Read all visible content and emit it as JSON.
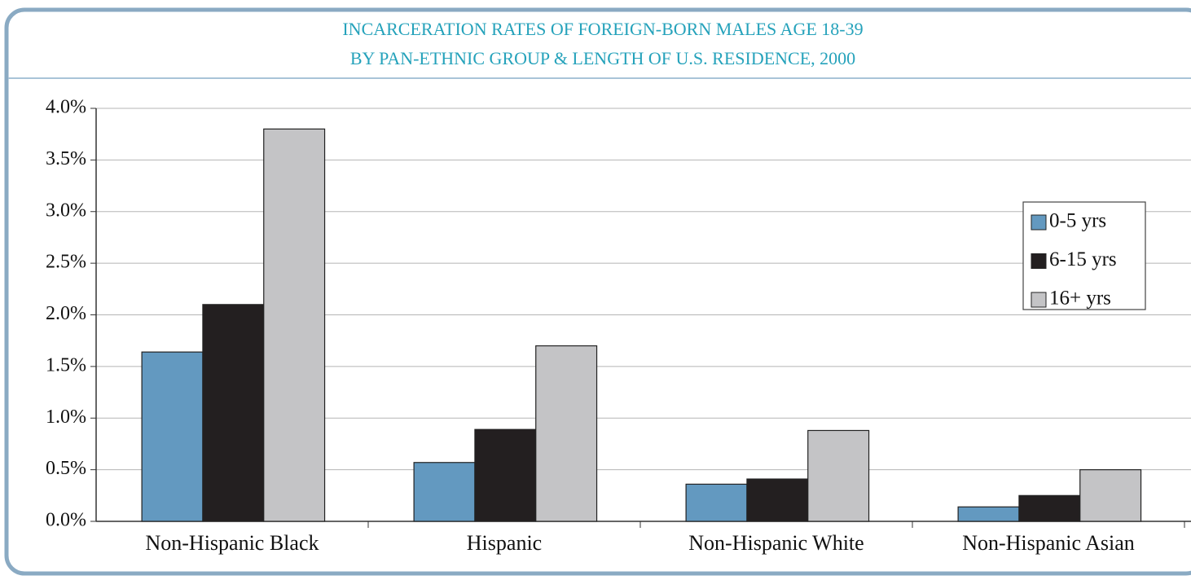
{
  "chart_data": {
    "type": "bar",
    "title": "INCARCERATION RATES OF FOREIGN-BORN MALES AGE 18-39",
    "subtitle": "BY PAN-ETHNIC GROUP & LENGTH OF U.S. RESIDENCE, 2000",
    "categories": [
      "Non-Hispanic Black",
      "Hispanic",
      "Non-Hispanic White",
      "Non-Hispanic Asian"
    ],
    "series": [
      {
        "name": "0-5 yrs",
        "color": "#6399c0",
        "values": [
          1.64,
          0.57,
          0.36,
          0.14
        ]
      },
      {
        "name": "6-15 yrs",
        "color": "#231f20",
        "values": [
          2.1,
          0.89,
          0.41,
          0.25
        ]
      },
      {
        "name": "16+ yrs",
        "color": "#c4c4c6",
        "values": [
          3.8,
          1.7,
          0.88,
          0.5
        ]
      }
    ],
    "ylim": [
      0,
      4
    ],
    "yticks": [
      {
        "value": 0,
        "label": "0.0%"
      },
      {
        "value": 0.5,
        "label": "0.5%"
      },
      {
        "value": 1,
        "label": "1.0%"
      },
      {
        "value": 1.5,
        "label": "1.5%"
      },
      {
        "value": 2,
        "label": "2.0%"
      },
      {
        "value": 2.5,
        "label": "2.5%"
      },
      {
        "value": 3,
        "label": "3.0%"
      },
      {
        "value": 3.5,
        "label": "3.5%"
      },
      {
        "value": 4,
        "label": "4.0%"
      }
    ],
    "grid": true,
    "legend": "right"
  }
}
